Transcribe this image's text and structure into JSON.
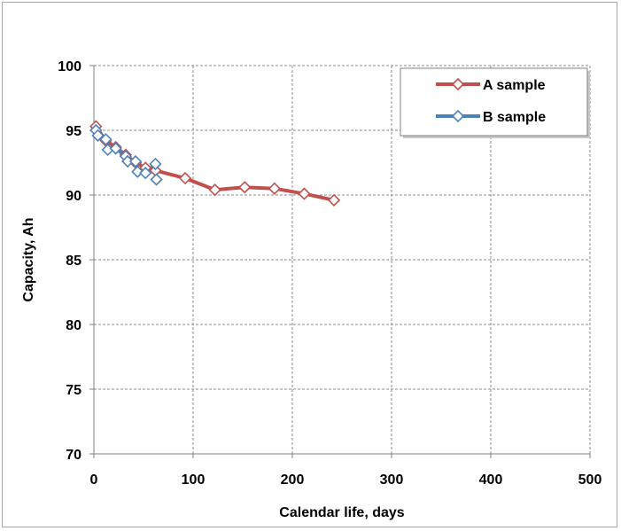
{
  "chart_data": {
    "type": "line",
    "title": "",
    "xlabel": "Calendar life, days",
    "ylabel": "Capacity, Ah",
    "xlim": [
      0,
      500
    ],
    "ylim": [
      70,
      100
    ],
    "x_ticks": [
      "0",
      "100",
      "200",
      "300",
      "400",
      "500"
    ],
    "y_ticks": [
      "70",
      "75",
      "80",
      "85",
      "90",
      "95",
      "100"
    ],
    "grid": true,
    "legend_position": "top-right",
    "series": [
      {
        "name": "A sample",
        "color": "#c0504d",
        "marker": "diamond",
        "x": [
          2,
          12,
          22,
          32,
          42,
          52,
          62,
          92,
          122,
          152,
          182,
          212,
          242
        ],
        "y": [
          95.3,
          94.2,
          93.7,
          93.1,
          92.5,
          92.1,
          91.9,
          91.3,
          90.4,
          90.6,
          90.5,
          90.1,
          89.6
        ]
      },
      {
        "name": "B sample",
        "color": "#4f81bd",
        "marker": "diamond",
        "x": [
          2,
          4,
          12,
          14,
          22,
          32,
          34,
          42,
          44,
          52,
          62,
          63
        ],
        "y": [
          95.0,
          94.6,
          94.3,
          93.5,
          93.6,
          93.0,
          92.6,
          92.6,
          91.8,
          91.7,
          92.4,
          91.2
        ]
      }
    ]
  }
}
